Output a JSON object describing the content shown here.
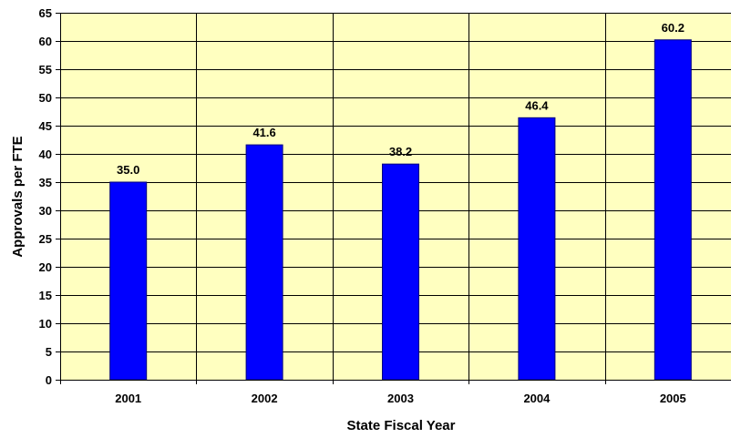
{
  "chart_data": {
    "type": "bar",
    "title": "",
    "xlabel": "State Fiscal Year",
    "ylabel": "Approvals per FTE",
    "categories": [
      "2001",
      "2002",
      "2003",
      "2004",
      "2005"
    ],
    "values": [
      35.0,
      41.6,
      38.2,
      46.4,
      60.2
    ],
    "value_labels": [
      "35.0",
      "41.6",
      "38.2",
      "46.4",
      "60.2"
    ],
    "ylim": [
      0,
      65
    ],
    "y_ticks": [
      0,
      5,
      10,
      15,
      20,
      25,
      30,
      35,
      40,
      45,
      50,
      55,
      60,
      65
    ],
    "grid": true,
    "legend": "none",
    "colors": {
      "bar": "#0000FF",
      "bar_outline": "#000080",
      "plot_background": "#FFFFC0",
      "gridline": "#000000"
    }
  }
}
